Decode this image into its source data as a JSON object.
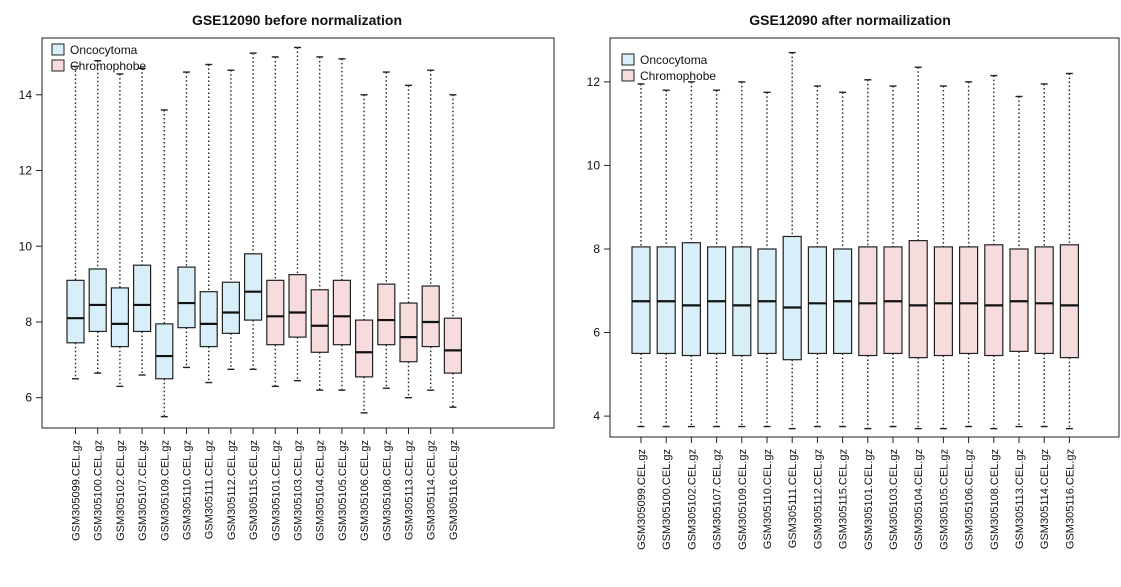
{
  "chart_data": [
    {
      "type": "boxplot",
      "title": "GSE12090 before normalization",
      "ylim": [
        5.2,
        15.5
      ],
      "yticks": [
        "6",
        "8",
        "10",
        "12",
        "14"
      ],
      "legend": {
        "position": "top-left",
        "entries": [
          {
            "label": "Oncocytoma",
            "color": "#d8eef8"
          },
          {
            "label": "Chromophobe",
            "color": "#f6dcdc"
          }
        ]
      },
      "categories": [
        "GSM305099.CEL.gz",
        "GSM305100.CEL.gz",
        "GSM305102.CEL.gz",
        "GSM305107.CEL.gz",
        "GSM305109.CEL.gz",
        "GSM305110.CEL.gz",
        "GSM305111.CEL.gz",
        "GSM305112.CEL.gz",
        "GSM305115.CEL.gz",
        "GSM305101.CEL.gz",
        "GSM305103.CEL.gz",
        "GSM305104.CEL.gz",
        "GSM305105.CEL.gz",
        "GSM305106.CEL.gz",
        "GSM305108.CEL.gz",
        "GSM305113.CEL.gz",
        "GSM305114.CEL.gz",
        "GSM305116.CEL.gz"
      ],
      "groups": [
        "Oncocytoma",
        "Oncocytoma",
        "Oncocytoma",
        "Oncocytoma",
        "Oncocytoma",
        "Oncocytoma",
        "Oncocytoma",
        "Oncocytoma",
        "Oncocytoma",
        "Chromophobe",
        "Chromophobe",
        "Chromophobe",
        "Chromophobe",
        "Chromophobe",
        "Chromophobe",
        "Chromophobe",
        "Chromophobe",
        "Chromophobe"
      ],
      "boxes": [
        {
          "min": 6.5,
          "q1": 7.45,
          "median": 8.1,
          "q3": 9.1,
          "max": 14.75
        },
        {
          "min": 6.65,
          "q1": 7.75,
          "median": 8.45,
          "q3": 9.4,
          "max": 14.9
        },
        {
          "min": 6.3,
          "q1": 7.35,
          "median": 7.95,
          "q3": 8.9,
          "max": 14.55
        },
        {
          "min": 6.6,
          "q1": 7.75,
          "median": 8.45,
          "q3": 9.5,
          "max": 14.7
        },
        {
          "min": 5.5,
          "q1": 6.5,
          "median": 7.1,
          "q3": 7.95,
          "max": 13.6
        },
        {
          "min": 6.8,
          "q1": 7.85,
          "median": 8.5,
          "q3": 9.45,
          "max": 14.6
        },
        {
          "min": 6.4,
          "q1": 7.35,
          "median": 7.95,
          "q3": 8.8,
          "max": 14.8
        },
        {
          "min": 6.75,
          "q1": 7.7,
          "median": 8.25,
          "q3": 9.05,
          "max": 14.65
        },
        {
          "min": 6.75,
          "q1": 8.05,
          "median": 8.8,
          "q3": 9.8,
          "max": 15.1
        },
        {
          "min": 6.3,
          "q1": 7.4,
          "median": 8.15,
          "q3": 9.1,
          "max": 15.0
        },
        {
          "min": 6.45,
          "q1": 7.6,
          "median": 8.25,
          "q3": 9.25,
          "max": 15.25
        },
        {
          "min": 6.2,
          "q1": 7.2,
          "median": 7.9,
          "q3": 8.85,
          "max": 15.0
        },
        {
          "min": 6.2,
          "q1": 7.4,
          "median": 8.15,
          "q3": 9.1,
          "max": 14.95
        },
        {
          "min": 5.6,
          "q1": 6.55,
          "median": 7.2,
          "q3": 8.05,
          "max": 14.0
        },
        {
          "min": 6.25,
          "q1": 7.4,
          "median": 8.05,
          "q3": 9.0,
          "max": 14.6
        },
        {
          "min": 6.0,
          "q1": 6.95,
          "median": 7.6,
          "q3": 8.5,
          "max": 14.25
        },
        {
          "min": 6.2,
          "q1": 7.35,
          "median": 8.0,
          "q3": 8.95,
          "max": 14.65
        },
        {
          "min": 5.75,
          "q1": 6.65,
          "median": 7.25,
          "q3": 8.1,
          "max": 14.0
        }
      ]
    },
    {
      "type": "boxplot",
      "title": "GSE12090 after normailization",
      "ylim": [
        3.5,
        13.05
      ],
      "yticks": [
        "4",
        "6",
        "8",
        "10",
        "12"
      ],
      "legend": {
        "position": "top-left",
        "entries": [
          {
            "label": "Oncocytoma",
            "color": "#d8eef8"
          },
          {
            "label": "Chromophobe",
            "color": "#f6dcdc"
          }
        ]
      },
      "categories": [
        "GSM305099.CEL.gz",
        "GSM305100.CEL.gz",
        "GSM305102.CEL.gz",
        "GSM305107.CEL.gz",
        "GSM305109.CEL.gz",
        "GSM305110.CEL.gz",
        "GSM305111.CEL.gz",
        "GSM305112.CEL.gz",
        "GSM305115.CEL.gz",
        "GSM305101.CEL.gz",
        "GSM305103.CEL.gz",
        "GSM305104.CEL.gz",
        "GSM305105.CEL.gz",
        "GSM305106.CEL.gz",
        "GSM305108.CEL.gz",
        "GSM305113.CEL.gz",
        "GSM305114.CEL.gz",
        "GSM305116.CEL.gz"
      ],
      "groups": [
        "Oncocytoma",
        "Oncocytoma",
        "Oncocytoma",
        "Oncocytoma",
        "Oncocytoma",
        "Oncocytoma",
        "Oncocytoma",
        "Oncocytoma",
        "Oncocytoma",
        "Chromophobe",
        "Chromophobe",
        "Chromophobe",
        "Chromophobe",
        "Chromophobe",
        "Chromophobe",
        "Chromophobe",
        "Chromophobe",
        "Chromophobe"
      ],
      "boxes": [
        {
          "min": 3.75,
          "q1": 5.5,
          "median": 6.75,
          "q3": 8.05,
          "max": 11.95
        },
        {
          "min": 3.75,
          "q1": 5.5,
          "median": 6.75,
          "q3": 8.05,
          "max": 11.8
        },
        {
          "min": 3.75,
          "q1": 5.45,
          "median": 6.65,
          "q3": 8.15,
          "max": 12.0
        },
        {
          "min": 3.75,
          "q1": 5.5,
          "median": 6.75,
          "q3": 8.05,
          "max": 11.8
        },
        {
          "min": 3.75,
          "q1": 5.45,
          "median": 6.65,
          "q3": 8.05,
          "max": 12.0
        },
        {
          "min": 3.75,
          "q1": 5.5,
          "median": 6.75,
          "q3": 8.0,
          "max": 11.75
        },
        {
          "min": 3.7,
          "q1": 5.35,
          "median": 6.6,
          "q3": 8.3,
          "max": 12.7
        },
        {
          "min": 3.75,
          "q1": 5.5,
          "median": 6.7,
          "q3": 8.05,
          "max": 11.9
        },
        {
          "min": 3.75,
          "q1": 5.5,
          "median": 6.75,
          "q3": 8.0,
          "max": 11.75
        },
        {
          "min": 3.7,
          "q1": 5.45,
          "median": 6.7,
          "q3": 8.05,
          "max": 12.05
        },
        {
          "min": 3.75,
          "q1": 5.5,
          "median": 6.75,
          "q3": 8.05,
          "max": 11.9
        },
        {
          "min": 3.7,
          "q1": 5.4,
          "median": 6.65,
          "q3": 8.2,
          "max": 12.35
        },
        {
          "min": 3.7,
          "q1": 5.45,
          "median": 6.7,
          "q3": 8.05,
          "max": 11.9
        },
        {
          "min": 3.75,
          "q1": 5.5,
          "median": 6.7,
          "q3": 8.05,
          "max": 12.0
        },
        {
          "min": 3.7,
          "q1": 5.45,
          "median": 6.65,
          "q3": 8.1,
          "max": 12.15
        },
        {
          "min": 3.75,
          "q1": 5.55,
          "median": 6.75,
          "q3": 8.0,
          "max": 11.65
        },
        {
          "min": 3.75,
          "q1": 5.5,
          "median": 6.7,
          "q3": 8.05,
          "max": 11.95
        },
        {
          "min": 3.7,
          "q1": 5.4,
          "median": 6.65,
          "q3": 8.1,
          "max": 12.2
        }
      ]
    }
  ]
}
